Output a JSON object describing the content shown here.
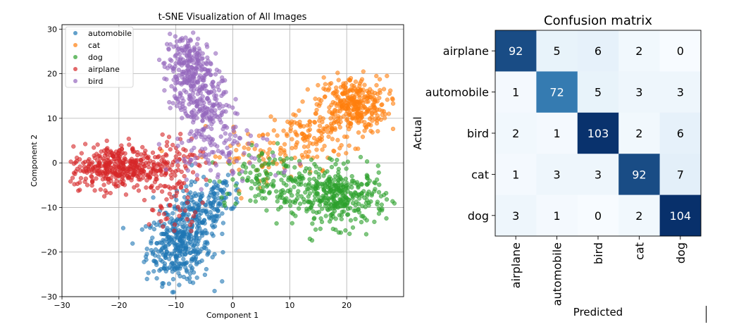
{
  "chart_data": [
    {
      "type": "scatter",
      "title": "t-SNE Visualization of All Images",
      "xlabel": "Component 1",
      "ylabel": "Component 2",
      "xlim": [
        -30,
        30
      ],
      "ylim": [
        -30,
        31
      ],
      "xticks": [
        -30,
        -20,
        -10,
        0,
        10,
        20
      ],
      "yticks": [
        -30,
        -20,
        -10,
        0,
        10,
        20,
        30
      ],
      "grid": true,
      "legend_position": "upper-left",
      "series": [
        {
          "name": "automobile",
          "color": "#1f77b4",
          "clusters": [
            {
              "center": [
                -9.5,
                -19
              ],
              "spread": [
                2.8,
                3.8
              ],
              "count": 330
            },
            {
              "center": [
                -6,
                -11
              ],
              "spread": [
                2.8,
                3.2
              ],
              "count": 150
            },
            {
              "center": [
                -2,
                -7
              ],
              "spread": [
                2.0,
                1.8
              ],
              "count": 50
            }
          ]
        },
        {
          "name": "cat",
          "color": "#ff7f0e",
          "clusters": [
            {
              "center": [
                21,
                13
              ],
              "spread": [
                3.0,
                3.2
              ],
              "count": 320
            },
            {
              "center": [
                14,
                6
              ],
              "spread": [
                3.5,
                3.0
              ],
              "count": 110
            },
            {
              "center": [
                4,
                1.5
              ],
              "spread": [
                5.5,
                3.0
              ],
              "count": 70
            }
          ]
        },
        {
          "name": "dog",
          "color": "#2ca02c",
          "clusters": [
            {
              "center": [
                19,
                -8
              ],
              "spread": [
                4.0,
                3.2
              ],
              "count": 330
            },
            {
              "center": [
                10,
                -4
              ],
              "spread": [
                4.5,
                3.2
              ],
              "count": 120
            },
            {
              "center": [
                3,
                -4
              ],
              "spread": [
                3.0,
                3.0
              ],
              "count": 50
            }
          ]
        },
        {
          "name": "airplane",
          "color": "#d62728",
          "clusters": [
            {
              "center": [
                -20,
                -1
              ],
              "spread": [
                4.2,
                2.4
              ],
              "count": 380
            },
            {
              "center": [
                -11,
                0
              ],
              "spread": [
                3.0,
                3.5
              ],
              "count": 80
            },
            {
              "center": [
                -10,
                -10
              ],
              "spread": [
                2.5,
                3.5
              ],
              "count": 40
            }
          ]
        },
        {
          "name": "bird",
          "color": "#9467bd",
          "clusters": [
            {
              "center": [
                -8,
                22
              ],
              "spread": [
                2.0,
                3.5
              ],
              "count": 210
            },
            {
              "center": [
                -5.5,
                14
              ],
              "spread": [
                2.5,
                3.5
              ],
              "count": 180
            },
            {
              "center": [
                -3,
                6
              ],
              "spread": [
                3.5,
                3.0
              ],
              "count": 80
            },
            {
              "center": [
                -1,
                0
              ],
              "spread": [
                6.0,
                3.0
              ],
              "count": 40
            }
          ]
        }
      ]
    },
    {
      "type": "heatmap",
      "title": "Confusion matrix",
      "xlabel": "Predicted",
      "ylabel": "Actual",
      "labels": [
        "airplane",
        "automobile",
        "bird",
        "cat",
        "dog"
      ],
      "values": [
        [
          92,
          5,
          6,
          2,
          0
        ],
        [
          1,
          72,
          5,
          3,
          3
        ],
        [
          2,
          1,
          103,
          2,
          6
        ],
        [
          1,
          3,
          3,
          92,
          7
        ],
        [
          3,
          1,
          0,
          2,
          104
        ]
      ],
      "colormap": "Blues"
    }
  ]
}
